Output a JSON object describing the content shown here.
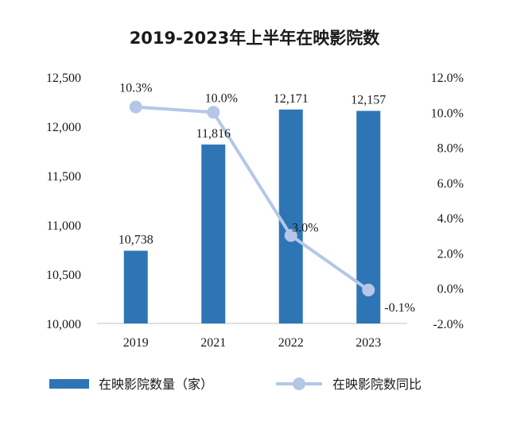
{
  "chart_data": {
    "type": "bar",
    "title": "2019-2023年上半年在映影院数",
    "categories": [
      "2019",
      "2021",
      "2022",
      "2023"
    ],
    "series": [
      {
        "name": "在映影院数量（家）",
        "type": "bar",
        "axis": "left",
        "color": "#2e75b6",
        "values": [
          10738,
          11816,
          12171,
          12157
        ],
        "labels": [
          "10,738",
          "11,816",
          "12,171",
          "12,157"
        ]
      },
      {
        "name": "在映影院数同比",
        "type": "line",
        "axis": "right",
        "color": "#b4c7e7",
        "values": [
          10.3,
          10.0,
          3.0,
          -0.1
        ],
        "labels": [
          "10.3%",
          "10.0%",
          "3.0%",
          "-0.1%"
        ]
      }
    ],
    "y_left": {
      "ylim": [
        10000,
        12500
      ],
      "ticks": [
        10000,
        10500,
        11000,
        11500,
        12000,
        12500
      ],
      "tick_labels": [
        "10,000",
        "10,500",
        "11,000",
        "11,500",
        "12,000",
        "12,500"
      ]
    },
    "y_right": {
      "ylim": [
        -2.0,
        12.0
      ],
      "ticks": [
        -2,
        0,
        2,
        4,
        6,
        8,
        10,
        12
      ],
      "tick_labels": [
        "-2.0%",
        "0.0%",
        "2.0%",
        "4.0%",
        "6.0%",
        "8.0%",
        "10.0%",
        "12.0%"
      ]
    },
    "grid": false,
    "legend_position": "bottom"
  }
}
